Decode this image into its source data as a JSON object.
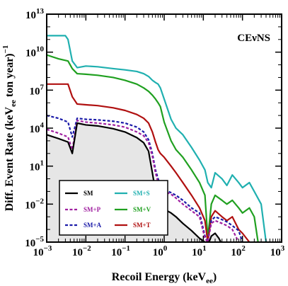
{
  "chart_data": {
    "type": "line",
    "title": "",
    "annotation": "CEνNS",
    "xlabel": "Recoil Energy (keV",
    "xlabel_sub": "ee",
    "xlabel_end": ")",
    "ylabel": "Diff. Event Rate (keV",
    "ylabel_sub": "ee",
    "ylabel_end": " ton year)",
    "ylabel_sup": "−1",
    "x_scale": "log",
    "y_scale": "log",
    "xlim": [
      0.001,
      1000
    ],
    "ylim": [
      1e-05,
      10000000000000
    ],
    "x_ticks": [
      {
        "base": "10",
        "exp": "−3"
      },
      {
        "base": "10",
        "exp": "−2"
      },
      {
        "base": "10",
        "exp": "−1"
      },
      {
        "base": "10",
        "exp": "0"
      },
      {
        "base": "10",
        "exp": "1"
      },
      {
        "base": "10",
        "exp": "2"
      },
      {
        "base": "10",
        "exp": "3"
      }
    ],
    "y_ticks": [
      {
        "base": "10",
        "exp": "−5"
      },
      {
        "base": "10",
        "exp": "−2"
      },
      {
        "base": "10",
        "exp": "1"
      },
      {
        "base": "10",
        "exp": "4"
      },
      {
        "base": "10",
        "exp": "7"
      },
      {
        "base": "10",
        "exp": "10"
      },
      {
        "base": "10",
        "exp": "13"
      }
    ],
    "legend_position": "bottom-left",
    "series": [
      {
        "name": "SM",
        "color": "#000000",
        "dash": "solid",
        "fill": "#e6e6e6",
        "x": [
          0.001,
          0.002,
          0.0035,
          0.0045,
          0.006,
          0.01,
          0.02,
          0.05,
          0.1,
          0.2,
          0.3,
          0.4,
          0.5,
          0.6,
          0.7,
          0.8,
          1.0,
          1.5,
          2,
          3,
          5,
          8,
          11,
          14,
          16,
          20,
          25,
          28
        ],
        "y": [
          3000,
          1500,
          800,
          100,
          25000,
          18000,
          15000,
          9000,
          5000,
          1800,
          700,
          150,
          3,
          0.1,
          0.03,
          0.01,
          0.004,
          0.002,
          0.001,
          0.0003,
          8e-05,
          2e-05,
          1e-05,
          1e-05,
          3e-05,
          5e-05,
          2e-05,
          1e-05
        ]
      },
      {
        "name": "SM+P",
        "color": "#a020a0",
        "dash": "dashed",
        "x": [
          0.001,
          0.002,
          0.0035,
          0.0045,
          0.006,
          0.01,
          0.02,
          0.05,
          0.1,
          0.2,
          0.3,
          0.4,
          0.5,
          0.6,
          0.7,
          0.8,
          1.0,
          1.5,
          2,
          3,
          5,
          8,
          11,
          13,
          16,
          20,
          30,
          40,
          55,
          80
        ],
        "y": [
          8000,
          4000,
          2000,
          200,
          40000,
          30000,
          25000,
          18000,
          12000,
          5000,
          2500,
          700,
          60,
          3,
          0.5,
          0.2,
          0.1,
          0.06,
          0.03,
          0.01,
          0.003,
          0.001,
          2e-05,
          1e-05,
          0.0003,
          0.0005,
          0.0003,
          0.0002,
          0.0001,
          1e-05
        ]
      },
      {
        "name": "SM+A",
        "color": "#1a1aa8",
        "dash": "dashed",
        "x": [
          0.001,
          0.002,
          0.0035,
          0.0045,
          0.006,
          0.01,
          0.02,
          0.05,
          0.1,
          0.2,
          0.3,
          0.4,
          0.5,
          0.6,
          0.7,
          0.8,
          1.0,
          1.5,
          2,
          3,
          5,
          8,
          11,
          13,
          16,
          20,
          30,
          40,
          55,
          80,
          100
        ],
        "y": [
          100000,
          60000,
          30000,
          2000,
          60000,
          50000,
          45000,
          35000,
          25000,
          12000,
          5000,
          1200,
          100,
          5,
          1,
          0.3,
          0.15,
          0.08,
          0.05,
          0.02,
          0.005,
          0.002,
          3e-05,
          1e-05,
          0.0005,
          0.001,
          0.0006,
          0.0004,
          0.0002,
          8e-05,
          1e-05
        ]
      },
      {
        "name": "SM+S",
        "color": "#20b0b0",
        "dash": "solid",
        "x": [
          0.001,
          0.002,
          0.003,
          0.0035,
          0.0045,
          0.006,
          0.01,
          0.02,
          0.05,
          0.1,
          0.2,
          0.3,
          0.4,
          0.5,
          0.6,
          0.7,
          0.8,
          1.0,
          1.5,
          2,
          3,
          5,
          8,
          11,
          13,
          16,
          20,
          30,
          40,
          55,
          80,
          100,
          150,
          200,
          300,
          400
        ],
        "y": [
          200000000000,
          200000000000,
          200000000000,
          100000000000,
          2000000000,
          600000000,
          800000000,
          700000000,
          500000000,
          400000000,
          300000000,
          200000000,
          120000000,
          60000000,
          40000000,
          30000000,
          15000000,
          2000000,
          50000,
          10000,
          3000,
          300,
          30,
          5,
          0.5,
          0.2,
          3,
          1,
          0.3,
          2,
          0.5,
          0.2,
          0.5,
          0.1,
          0.01,
          1e-05
        ]
      },
      {
        "name": "SM+V",
        "color": "#20a020",
        "dash": "solid",
        "x": [
          0.001,
          0.002,
          0.0035,
          0.0045,
          0.006,
          0.01,
          0.02,
          0.05,
          0.1,
          0.2,
          0.3,
          0.4,
          0.5,
          0.6,
          0.7,
          0.8,
          1.0,
          1.5,
          2,
          3,
          5,
          8,
          11,
          13,
          16,
          20,
          30,
          40,
          55,
          80,
          100,
          150,
          200,
          250
        ],
        "y": [
          6000000000,
          3000000000,
          2000000000,
          500000000,
          200000000,
          180000000,
          150000000,
          100000000,
          60000000,
          30000000,
          15000000,
          8000000,
          4000000,
          2000000,
          1000000,
          500000,
          30000,
          1000,
          200,
          50,
          5,
          0.5,
          0.05,
          2e-05,
          0.01,
          0.05,
          0.02,
          0.01,
          0.02,
          0.005,
          0.002,
          0.005,
          0.001,
          1e-05
        ]
      },
      {
        "name": "SM+T",
        "color": "#b01010",
        "dash": "solid",
        "x": [
          0.001,
          0.002,
          0.0035,
          0.0045,
          0.006,
          0.01,
          0.02,
          0.05,
          0.1,
          0.2,
          0.3,
          0.4,
          0.5,
          0.6,
          0.7,
          0.8,
          1.0,
          1.5,
          2,
          3,
          5,
          8,
          11,
          13,
          16,
          20,
          30,
          40,
          55,
          80,
          100,
          150
        ],
        "y": [
          30000000,
          30000000,
          30000000,
          3000000,
          800000,
          700000,
          600000,
          400000,
          250000,
          120000,
          60000,
          25000,
          5000,
          800,
          200,
          100,
          50,
          10,
          3,
          0.5,
          0.05,
          0.005,
          0.0005,
          1e-05,
          0.001,
          0.003,
          0.001,
          0.0005,
          0.001,
          0.0001,
          5e-05,
          1e-05
        ]
      }
    ]
  }
}
